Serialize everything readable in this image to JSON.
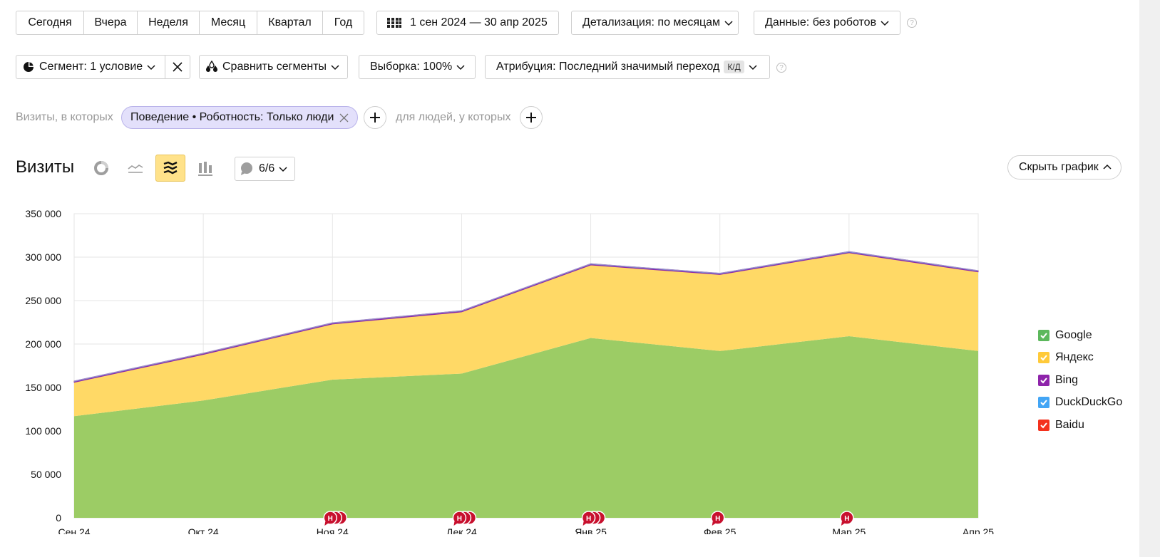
{
  "period_buttons": [
    "Сегодня",
    "Вчера",
    "Неделя",
    "Месяц",
    "Квартал",
    "Год"
  ],
  "date_range": "1 сен 2024 — 30 апр 2025",
  "detail": "Детализация: по месяцам",
  "data_filter": "Данные: без роботов",
  "segment": "Сегмент: 1 условие",
  "compare": "Сравнить сегменты",
  "sample": "Выборка: 100%",
  "attribution": "Атрибуция: Последний значимый переход",
  "attribution_badge": "К/Д",
  "visits_in_which": "Визиты, в которых",
  "chip": "Поведение • Роботность: Только люди",
  "people_who": "для людей, у которых",
  "title": "Визиты",
  "annotations_count": "6/6",
  "hide_chart": "Скрыть график",
  "note_marker": "Н",
  "colors": {
    "google": "#9ccc65",
    "yandex": "#ffd966",
    "bing": "#8e24aa",
    "duckduckgo": "#42a5f5",
    "baidu": "#f4311d",
    "marker": "#c8102e",
    "active_tool": "#ffe28a"
  },
  "icons": [
    "calendar-grid-icon",
    "pie-segment-icon",
    "drops-icon",
    "donut-chart-icon",
    "line-chart-icon",
    "stacked-area-icon",
    "bar-chart-icon",
    "comment-icon",
    "chevron-down-icon",
    "chevron-up-icon",
    "close-icon",
    "plus-icon",
    "help-icon"
  ],
  "chart_data": {
    "type": "area",
    "stacked": true,
    "categories": [
      "Сен 24",
      "Окт 24",
      "Ноя 24",
      "Дек 24",
      "Янв 25",
      "Фев 25",
      "Мар 25",
      "Апр 25"
    ],
    "y_ticks": [
      "0",
      "50 000",
      "100 000",
      "150 000",
      "200 000",
      "250 000",
      "300 000",
      "350 000"
    ],
    "ylim": [
      0,
      350000
    ],
    "grid": true,
    "legend_position": "right",
    "series": [
      {
        "name": "Google",
        "values": [
          117000,
          135000,
          159000,
          166000,
          207000,
          192000,
          209000,
          192000
        ]
      },
      {
        "name": "Яндекс",
        "values": [
          39000,
          53000,
          64000,
          71000,
          84000,
          88000,
          96000,
          91000
        ]
      },
      {
        "name": "Bing",
        "values": [
          1000,
          1000,
          1000,
          1000,
          1000,
          1000,
          1000,
          1000
        ]
      },
      {
        "name": "DuckDuckGo",
        "values": [
          300,
          300,
          300,
          300,
          300,
          300,
          300,
          300
        ]
      },
      {
        "name": "Baidu",
        "values": [
          100,
          100,
          100,
          100,
          100,
          100,
          100,
          100
        ]
      }
    ],
    "note_marker_counts": [
      0,
      0,
      3,
      3,
      3,
      1,
      1,
      0
    ]
  }
}
